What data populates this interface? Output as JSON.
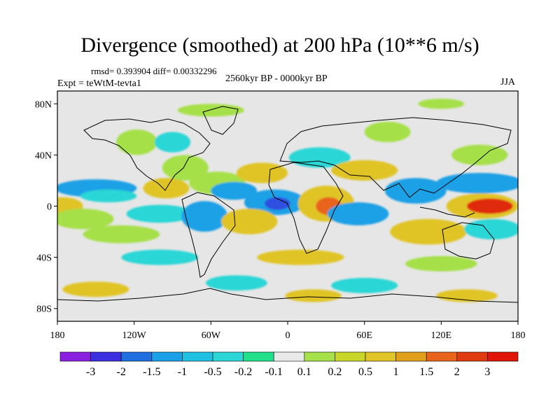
{
  "title": "Divergence (smoothed) at 200 hPa (10**6 m/s)",
  "stats": "rmsd= 0.393904 diff= 0.00332296",
  "experiment": "Expt = teWtM-tevta1",
  "period": "2560kyr BP - 0000kyr BP",
  "season": "JJA",
  "map": {
    "lat_axis": {
      "range": [
        -90,
        90
      ],
      "ticks": [
        {
          "value": 80,
          "label": "80N"
        },
        {
          "value": 40,
          "label": "40N"
        },
        {
          "value": 0,
          "label": "0"
        },
        {
          "value": -40,
          "label": "40S"
        },
        {
          "value": -80,
          "label": "80S"
        }
      ]
    },
    "lon_axis": {
      "range": [
        -180,
        180
      ],
      "ticks": [
        {
          "value": -180,
          "label": "180"
        },
        {
          "value": -120,
          "label": "120W"
        },
        {
          "value": -60,
          "label": "60W"
        },
        {
          "value": 0,
          "label": "0"
        },
        {
          "value": 60,
          "label": "60E"
        },
        {
          "value": 120,
          "label": "120E"
        },
        {
          "value": 180,
          "label": "180"
        }
      ]
    },
    "colors": {
      "neutral": "#e6e6e6",
      "strong_convergence": "#2f4fe0",
      "convergence": "#1aa0e6",
      "weak_convergence": "#2cd6d6",
      "weak_divergence": "#a6e04a",
      "divergence": "#e0c428",
      "strong_divergence": "#e8641c",
      "max_divergence": "#e02a10"
    },
    "blobs": [
      {
        "lon": -176,
        "lat": 0,
        "rlon": 16,
        "rlat": 7,
        "level": "divergence"
      },
      {
        "lon": -160,
        "lat": -10,
        "rlon": 24,
        "rlat": 8,
        "level": "weak_divergence"
      },
      {
        "lon": -150,
        "lat": 14,
        "rlon": 32,
        "rlat": 7,
        "level": "convergence"
      },
      {
        "lon": -140,
        "lat": 8,
        "rlon": 22,
        "rlat": 5,
        "level": "weak_convergence"
      },
      {
        "lon": -130,
        "lat": -22,
        "rlon": 30,
        "rlat": 7,
        "level": "weak_divergence"
      },
      {
        "lon": -100,
        "lat": -6,
        "rlon": 26,
        "rlat": 7,
        "level": "weak_convergence"
      },
      {
        "lon": -95,
        "lat": 14,
        "rlon": 18,
        "rlat": 8,
        "level": "divergence"
      },
      {
        "lon": -80,
        "lat": 30,
        "rlon": 18,
        "rlat": 10,
        "level": "weak_divergence"
      },
      {
        "lon": -118,
        "lat": 50,
        "rlon": 16,
        "rlat": 10,
        "level": "weak_divergence"
      },
      {
        "lon": -90,
        "lat": 50,
        "rlon": 14,
        "rlat": 8,
        "level": "weak_convergence"
      },
      {
        "lon": -65,
        "lat": -8,
        "rlon": 18,
        "rlat": 12,
        "level": "convergence"
      },
      {
        "lon": -55,
        "lat": 18,
        "rlon": 22,
        "rlat": 9,
        "level": "weak_divergence"
      },
      {
        "lon": -42,
        "lat": 12,
        "rlon": 18,
        "rlat": 7,
        "level": "convergence"
      },
      {
        "lon": -10,
        "lat": 3,
        "rlon": 24,
        "rlat": 10,
        "level": "convergence"
      },
      {
        "lon": -8,
        "lat": 2,
        "rlon": 10,
        "rlat": 5,
        "level": "strong_convergence"
      },
      {
        "lon": -30,
        "lat": -12,
        "rlon": 22,
        "rlat": 10,
        "level": "divergence"
      },
      {
        "lon": -20,
        "lat": 26,
        "rlon": 20,
        "rlat": 8,
        "level": "divergence"
      },
      {
        "lon": 30,
        "lat": 2,
        "rlon": 22,
        "rlat": 14,
        "level": "divergence"
      },
      {
        "lon": 32,
        "lat": 0,
        "rlon": 10,
        "rlat": 7,
        "level": "strong_divergence"
      },
      {
        "lon": 25,
        "lat": 38,
        "rlon": 24,
        "rlat": 8,
        "level": "weak_convergence"
      },
      {
        "lon": 55,
        "lat": -6,
        "rlon": 24,
        "rlat": 9,
        "level": "convergence"
      },
      {
        "lon": 60,
        "lat": 28,
        "rlon": 26,
        "rlat": 8,
        "level": "divergence"
      },
      {
        "lon": 78,
        "lat": 58,
        "rlon": 18,
        "rlat": 8,
        "level": "weak_divergence"
      },
      {
        "lon": 100,
        "lat": 12,
        "rlon": 24,
        "rlat": 10,
        "level": "convergence"
      },
      {
        "lon": 110,
        "lat": -20,
        "rlon": 30,
        "rlat": 10,
        "level": "divergence"
      },
      {
        "lon": 152,
        "lat": 0,
        "rlon": 28,
        "rlat": 10,
        "level": "divergence"
      },
      {
        "lon": 158,
        "lat": 0,
        "rlon": 18,
        "rlat": 6,
        "level": "max_divergence"
      },
      {
        "lon": 150,
        "lat": 18,
        "rlon": 34,
        "rlat": 8,
        "level": "convergence"
      },
      {
        "lon": 160,
        "lat": -18,
        "rlon": 22,
        "rlat": 8,
        "level": "weak_convergence"
      },
      {
        "lon": 150,
        "lat": 40,
        "rlon": 22,
        "rlat": 8,
        "level": "weak_divergence"
      },
      {
        "lon": -100,
        "lat": -40,
        "rlon": 30,
        "rlat": 6,
        "level": "weak_convergence"
      },
      {
        "lon": 10,
        "lat": -40,
        "rlon": 34,
        "rlat": 6,
        "level": "divergence"
      },
      {
        "lon": 120,
        "lat": -45,
        "rlon": 28,
        "rlat": 6,
        "level": "weak_divergence"
      },
      {
        "lon": -40,
        "lat": -60,
        "rlon": 24,
        "rlat": 6,
        "level": "weak_convergence"
      },
      {
        "lon": 60,
        "lat": -62,
        "rlon": 26,
        "rlat": 6,
        "level": "weak_convergence"
      },
      {
        "lon": -150,
        "lat": -65,
        "rlon": 26,
        "rlat": 6,
        "level": "divergence"
      },
      {
        "lon": 20,
        "lat": -70,
        "rlon": 22,
        "rlat": 5,
        "level": "divergence"
      },
      {
        "lon": 140,
        "lat": -70,
        "rlon": 24,
        "rlat": 5,
        "level": "divergence"
      },
      {
        "lon": -60,
        "lat": 75,
        "rlon": 26,
        "rlat": 5,
        "level": "weak_divergence"
      },
      {
        "lon": 120,
        "lat": 80,
        "rlon": 18,
        "rlat": 4,
        "level": "weak_divergence"
      }
    ]
  },
  "colorbar": {
    "colors": [
      "#8a20e0",
      "#3b2fe0",
      "#1f6fe0",
      "#1aa0e6",
      "#1ec2e0",
      "#2cd6d6",
      "#22e08a",
      "#eaeaea",
      "#a6e04a",
      "#c8d62a",
      "#e0c428",
      "#e0a01c",
      "#e8641c",
      "#e03a10",
      "#e01408"
    ],
    "labels": [
      "-3",
      "-2",
      "-1.5",
      "-1",
      "-0.5",
      "-0.2",
      "-0.1",
      "0.1",
      "0.2",
      "0.5",
      "1",
      "1.5",
      "2",
      "3"
    ]
  }
}
